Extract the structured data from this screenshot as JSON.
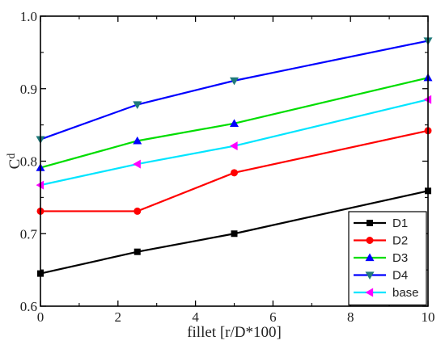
{
  "chart_data": {
    "type": "line",
    "xlabel": "fillet [r/D*100]",
    "ylabel": "C",
    "ylabel_sub": "d",
    "xlim": [
      0,
      10
    ],
    "ylim": [
      0.6,
      1.0
    ],
    "xticks": [
      0,
      2,
      4,
      6,
      8,
      10
    ],
    "xtick_labels": [
      "0",
      "2",
      "4",
      "6",
      "8",
      "10"
    ],
    "yticks": [
      0.6,
      0.7,
      0.8,
      0.9,
      1.0
    ],
    "ytick_labels": [
      "0.6",
      "0.7",
      "0.8",
      "0.9",
      "1.0"
    ],
    "grid": false,
    "legend_position": "bottom-right",
    "x": [
      0,
      2.5,
      5,
      10
    ],
    "series": [
      {
        "name": "D1",
        "values": [
          0.645,
          0.675,
          0.7,
          0.759
        ],
        "color": "#000000",
        "marker": "square"
      },
      {
        "name": "D2",
        "values": [
          0.731,
          0.731,
          0.784,
          0.842
        ],
        "color": "#ff0000",
        "marker": "circle"
      },
      {
        "name": "D3",
        "values": [
          0.791,
          0.828,
          0.852,
          0.915
        ],
        "color": "#00dd00",
        "marker": "triangle-up"
      },
      {
        "name": "D4",
        "values": [
          0.83,
          0.878,
          0.911,
          0.966
        ],
        "color": "#0000ff",
        "marker": "triangle-down"
      },
      {
        "name": "base",
        "values": [
          0.767,
          0.796,
          0.821,
          0.885
        ],
        "color": "#00e5ff",
        "marker": "triangle-left"
      }
    ],
    "marker_colors": {
      "square": "#000000",
      "circle": "#ff0000",
      "triangle-up": "#0000ff",
      "triangle-down": "#1f7a7a",
      "triangle-left": "#ff00ff"
    }
  }
}
